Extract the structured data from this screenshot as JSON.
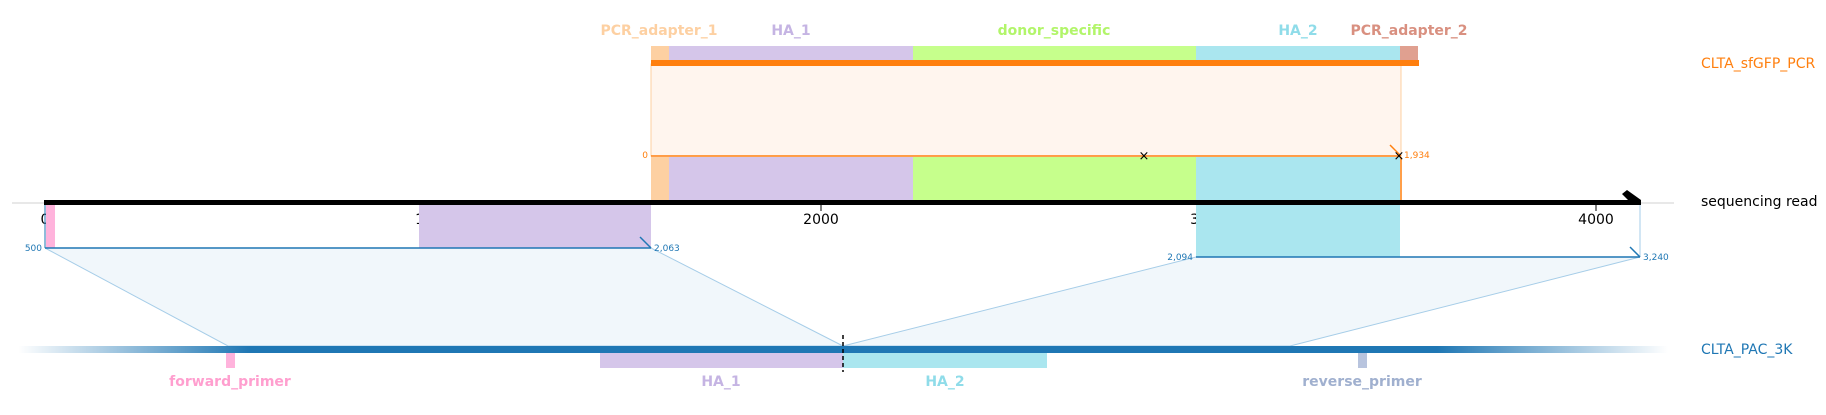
{
  "tracks": {
    "top": "CLTA_sfGFP_PCR",
    "read": "sequencing read",
    "bottom": "CLTA_PAC_3K"
  },
  "top_features": [
    {
      "name": "PCR_adapter_1",
      "color": "#fdd0a2"
    },
    {
      "name": "HA_1",
      "color": "#d5c6ea"
    },
    {
      "name": "donor_specific",
      "color": "#c6ff8c"
    },
    {
      "name": "HA_2",
      "color": "#aae6ef"
    },
    {
      "name": "PCR_adapter_2",
      "color": "#e0a090"
    }
  ],
  "bottom_features": [
    {
      "name": "forward_primer",
      "color": "#ffb3dc"
    },
    {
      "name": "HA_1",
      "color": "#d5c6ea"
    },
    {
      "name": "HA_2",
      "color": "#aae6ef"
    },
    {
      "name": "reverse_primer",
      "color": "#b8c4de"
    }
  ],
  "read_axis": {
    "ticks": [
      "0",
      "1000",
      "2000",
      "3000",
      "4000"
    ]
  },
  "alignment_labels": {
    "top_start": "0",
    "top_end": "1,934",
    "left_start": "500",
    "left_end": "2,063",
    "right_start": "2,094",
    "right_end": "3,240"
  },
  "colors": {
    "top_track": "#ff7f0e",
    "bottom_track": "#1f77b4",
    "read": "#000000"
  }
}
